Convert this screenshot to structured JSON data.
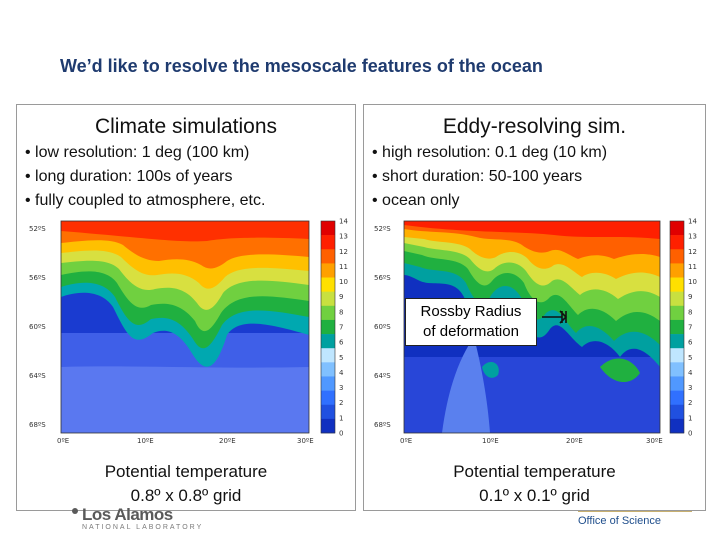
{
  "slide": {
    "title": "We’d like to resolve the mesoscale features of the ocean"
  },
  "left_panel": {
    "title": "Climate simulations",
    "bullets": [
      "• low resolution: 1 deg (100 km)",
      "• long duration: 100s of years",
      "• fully coupled to atmosphere, etc."
    ],
    "caption_line1": "Potential temperature",
    "caption_line2": "0.8º x 0.8º grid",
    "y_ticks": [
      "52ºS",
      "56ºS",
      "60ºS",
      "64ºS",
      "68ºS"
    ],
    "x_ticks": [
      "0ºE",
      "10ºE",
      "20ºE",
      "30ºE"
    ],
    "colorbar_labels": [
      "14",
      "13",
      "12",
      "11",
      "10",
      "9",
      "8",
      "7",
      "6",
      "5",
      "4",
      "3",
      "2",
      "1",
      "0"
    ]
  },
  "right_panel": {
    "title": "Eddy-resolving sim.",
    "bullets": [
      "• high resolution: 0.1 deg (10 km)",
      "• short duration: 50-100 years",
      "• ocean only"
    ],
    "caption_line1": "Potential temperature",
    "caption_line2": "0.1º x 0.1º grid",
    "callout_line1": "Rossby Radius",
    "callout_line2": "of deformation",
    "y_ticks": [
      "52ºS",
      "56ºS",
      "60ºS",
      "64ºS",
      "68ºS"
    ],
    "x_ticks": [
      "0ºE",
      "10ºE",
      "20ºE",
      "30ºE"
    ],
    "colorbar_labels": [
      "14",
      "13",
      "12",
      "11",
      "10",
      "9",
      "8",
      "7",
      "6",
      "5",
      "4",
      "3",
      "2",
      "1",
      "0"
    ]
  },
  "footer": {
    "logo_word": "Los Alamos",
    "logo_sub": "NATIONAL LABORATORY",
    "office": "Office of Science"
  },
  "colors": {
    "title_blue": "#1f3b6f",
    "scale": [
      "#1030c0",
      "#2050e0",
      "#3070ff",
      "#5098ff",
      "#80c0ff",
      "#bfe6ff",
      "#00a0a0",
      "#20b040",
      "#70d040",
      "#c8e040",
      "#ffe000",
      "#ffa000",
      "#ff6000",
      "#ff2000",
      "#e00000"
    ]
  }
}
